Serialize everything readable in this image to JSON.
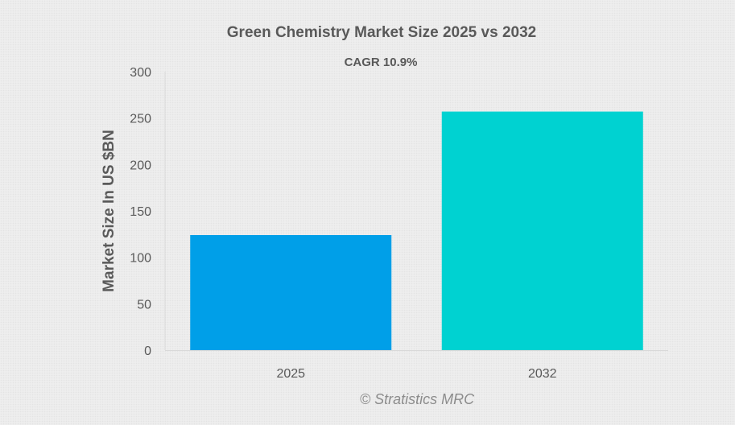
{
  "chart_data": {
    "type": "bar",
    "title": "Green Chemistry Market Size 2025 vs 2032",
    "subtitle": "CAGR 10.9%",
    "categories": [
      "2025",
      "2032"
    ],
    "values": [
      124,
      257
    ],
    "colors": [
      "#009fe8",
      "#00d2d1"
    ],
    "xlabel": "",
    "ylabel": "Market Size In US $BN",
    "ylim": [
      0,
      300
    ],
    "yticks": [
      "0",
      "50",
      "100",
      "150",
      "200",
      "250",
      "300"
    ],
    "grid": false,
    "legend": "none"
  },
  "watermark": "© Stratistics MRC"
}
